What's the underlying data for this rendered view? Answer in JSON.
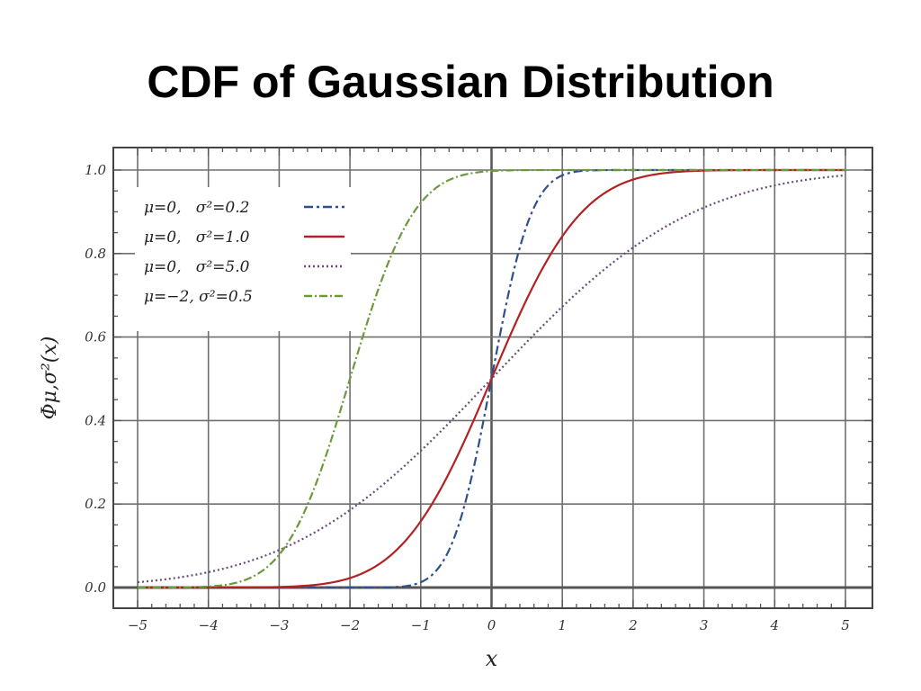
{
  "slide": {
    "title": "CDF of Gaussian Distribution"
  },
  "chart_data": {
    "type": "line",
    "xlabel": "x",
    "ylabel": "Φμ,σ²(x)",
    "xlim": [
      -5,
      5
    ],
    "ylim": [
      0,
      1
    ],
    "x_ticks": [
      -5,
      -4,
      -3,
      -2,
      -1,
      0,
      1,
      2,
      3,
      4,
      5
    ],
    "x_tick_labels": [
      "−5",
      "−4",
      "−3",
      "−2",
      "−1",
      "0",
      "1",
      "2",
      "3",
      "4",
      "5"
    ],
    "y_ticks": [
      0,
      0.2,
      0.4,
      0.6,
      0.8,
      1
    ],
    "y_tick_labels": [
      "0.0",
      "0.2",
      "0.4",
      "0.6",
      "0.8",
      "1.0"
    ],
    "grid": true,
    "legend_position": "top-left",
    "series": [
      {
        "name": "μ=0,   σ²=0.2",
        "mu": 0,
        "variance": 0.2,
        "color": "#2f4f8f",
        "dash": "10,4,3,4"
      },
      {
        "name": "μ=0,   σ²=1.0",
        "mu": 0,
        "variance": 1.0,
        "color": "#b22222",
        "dash": ""
      },
      {
        "name": "μ=0,   σ²=5.0",
        "mu": 0,
        "variance": 5.0,
        "color": "#6a4a7a",
        "dash": "2,3"
      },
      {
        "name": "μ=−2, σ²=0.5",
        "mu": -2,
        "variance": 0.5,
        "color": "#6a9a3a",
        "dash": "9,3,2,3"
      }
    ]
  }
}
